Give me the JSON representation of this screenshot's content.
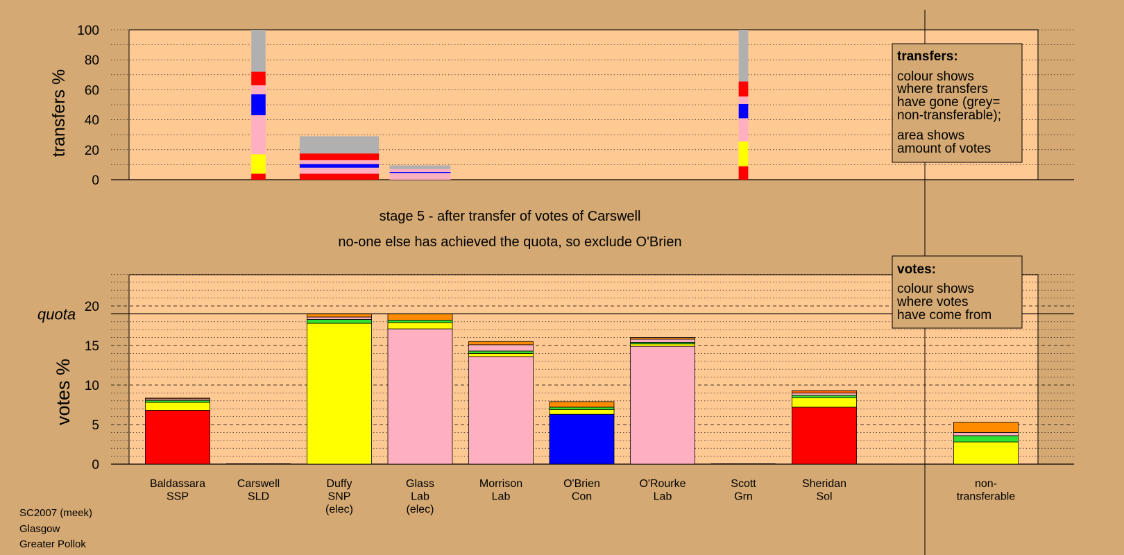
{
  "stage_title": "stage 5 - after transfer of votes of Carswell",
  "stage_subtitle": "no-one else has achieved the quota, so exclude O'Brien",
  "footer": [
    "SC2007 (meek)",
    "Glasgow",
    "Greater Pollok"
  ],
  "colors": {
    "background": "#d4a973",
    "plot_bg": "#ffc993",
    "SSP": "#ff0000",
    "SNP": "#ffff00",
    "Lab": "#ffb0c0",
    "Con": "#0000ff",
    "Grn": "#30e030",
    "Sol": "#ff8c00",
    "Sol_dark": "#ff6600",
    "non_transferable": "#b0b0b0"
  },
  "legends": {
    "transfers": {
      "title": "transfers:",
      "lines1": [
        "colour shows",
        "where transfers",
        "have gone (grey=",
        "non-transferable);"
      ],
      "lines2": [
        "area shows",
        "amount of votes"
      ]
    },
    "votes": {
      "title": "votes:",
      "lines": [
        "colour shows",
        "where votes",
        "have come from"
      ]
    }
  },
  "chart_data": [
    {
      "type": "bar",
      "id": "transfers",
      "ylabel": "transfers %",
      "ylim": [
        0,
        100
      ],
      "yticks": [
        0,
        20,
        40,
        60,
        80,
        100
      ],
      "grid": "dotted every 10",
      "bars": [
        {
          "pos": 2.0,
          "width": 0.18,
          "segments": [
            {
              "color": "SSP",
              "value": 4
            },
            {
              "color": "SNP",
              "value": 13
            },
            {
              "color": "Lab",
              "value": 26
            },
            {
              "color": "Con",
              "value": 14
            },
            {
              "color": "Lab",
              "value": 6
            },
            {
              "color": "SSP",
              "value": 9
            },
            {
              "color": "non_transferable",
              "value": 28
            }
          ]
        },
        {
          "pos": 3.0,
          "width": 1.0,
          "segments": [
            {
              "color": "SSP",
              "value": 4
            },
            {
              "color": "Lab",
              "value": 4
            },
            {
              "color": "Con",
              "value": 2.5
            },
            {
              "color": "Lab",
              "value": 2.5
            },
            {
              "color": "SSP",
              "value": 4.5
            },
            {
              "color": "non_transferable",
              "value": 11.5
            }
          ]
        },
        {
          "pos": 4.0,
          "width": 0.77,
          "segments": [
            {
              "color": "Lab",
              "value": 4.5
            },
            {
              "color": "Con",
              "value": 0.6
            },
            {
              "color": "Lab",
              "value": 2
            },
            {
              "color": "non_transferable",
              "value": 2.4
            }
          ]
        },
        {
          "pos": 8.0,
          "width": 0.12,
          "segments": [
            {
              "color": "SSP",
              "value": 9
            },
            {
              "color": "SNP",
              "value": 16.5
            },
            {
              "color": "Lab",
              "value": 15.5
            },
            {
              "color": "Con",
              "value": 9.5
            },
            {
              "color": "Lab",
              "value": 5
            },
            {
              "color": "SSP",
              "value": 10
            },
            {
              "color": "non_transferable",
              "value": 34.5
            }
          ]
        }
      ]
    },
    {
      "type": "bar",
      "id": "votes",
      "ylabel": "votes %",
      "ylim": [
        0,
        24
      ],
      "yticks": [
        0,
        5,
        10,
        15,
        20
      ],
      "quota": 19,
      "quota_label": "quota",
      "categories": [
        [
          "Baldassara",
          "SSP"
        ],
        [
          "Carswell",
          "SLD"
        ],
        [
          "Duffy",
          "SNP",
          "(elec)"
        ],
        [
          "Glass",
          "Lab",
          "(elec)"
        ],
        [
          "Morrison",
          "Lab"
        ],
        [
          "O'Brien",
          "Con"
        ],
        [
          "O'Rourke",
          "Lab"
        ],
        [
          "Scott",
          "Grn"
        ],
        [
          "Sheridan",
          "Sol"
        ],
        [
          "non-",
          "transferable"
        ]
      ],
      "positions": [
        1,
        2,
        3,
        4,
        5,
        6,
        7,
        8,
        9,
        11
      ],
      "bars": [
        {
          "segments": [
            {
              "color": "SSP",
              "value": 6.8
            },
            {
              "color": "SNP",
              "value": 1.0
            },
            {
              "color": "Grn",
              "value": 0.25
            },
            {
              "color": "Lab",
              "value": 0.2
            },
            {
              "color": "Sol",
              "value": 0.1
            }
          ]
        },
        {
          "segments": []
        },
        {
          "segments": [
            {
              "color": "SNP",
              "value": 17.8
            },
            {
              "color": "Grn",
              "value": 0.5
            },
            {
              "color": "Lab",
              "value": 0.3
            },
            {
              "color": "Sol",
              "value": 0.4
            }
          ]
        },
        {
          "segments": [
            {
              "color": "Lab",
              "value": 17.1
            },
            {
              "color": "SNP",
              "value": 0.8
            },
            {
              "color": "Grn",
              "value": 0.3
            },
            {
              "color": "Sol",
              "value": 0.8
            }
          ]
        },
        {
          "segments": [
            {
              "color": "Lab",
              "value": 13.6
            },
            {
              "color": "SNP",
              "value": 0.4
            },
            {
              "color": "Grn",
              "value": 0.3
            },
            {
              "color": "Lab",
              "value": 0.8
            },
            {
              "color": "Sol",
              "value": 0.4
            }
          ]
        },
        {
          "segments": [
            {
              "color": "Con",
              "value": 6.3
            },
            {
              "color": "SNP",
              "value": 0.6
            },
            {
              "color": "Grn",
              "value": 0.3
            },
            {
              "color": "Sol",
              "value": 0.7
            }
          ]
        },
        {
          "segments": [
            {
              "color": "Lab",
              "value": 14.9
            },
            {
              "color": "SNP",
              "value": 0.3
            },
            {
              "color": "Grn",
              "value": 0.2
            },
            {
              "color": "Lab",
              "value": 0.4
            },
            {
              "color": "Sol",
              "value": 0.2
            }
          ]
        },
        {
          "segments": []
        },
        {
          "segments": [
            {
              "color": "SSP",
              "value": 7.2
            },
            {
              "color": "SNP",
              "value": 1.2
            },
            {
              "color": "Grn",
              "value": 0.3
            },
            {
              "color": "Lab",
              "value": 0.3
            },
            {
              "color": "Sol_dark",
              "value": 0.3
            }
          ]
        },
        {
          "segments": [
            {
              "color": "SNP",
              "value": 2.8
            },
            {
              "color": "Grn",
              "value": 0.8
            },
            {
              "color": "Lab",
              "value": 0.4
            },
            {
              "color": "Sol",
              "value": 1.3
            }
          ]
        }
      ]
    }
  ]
}
